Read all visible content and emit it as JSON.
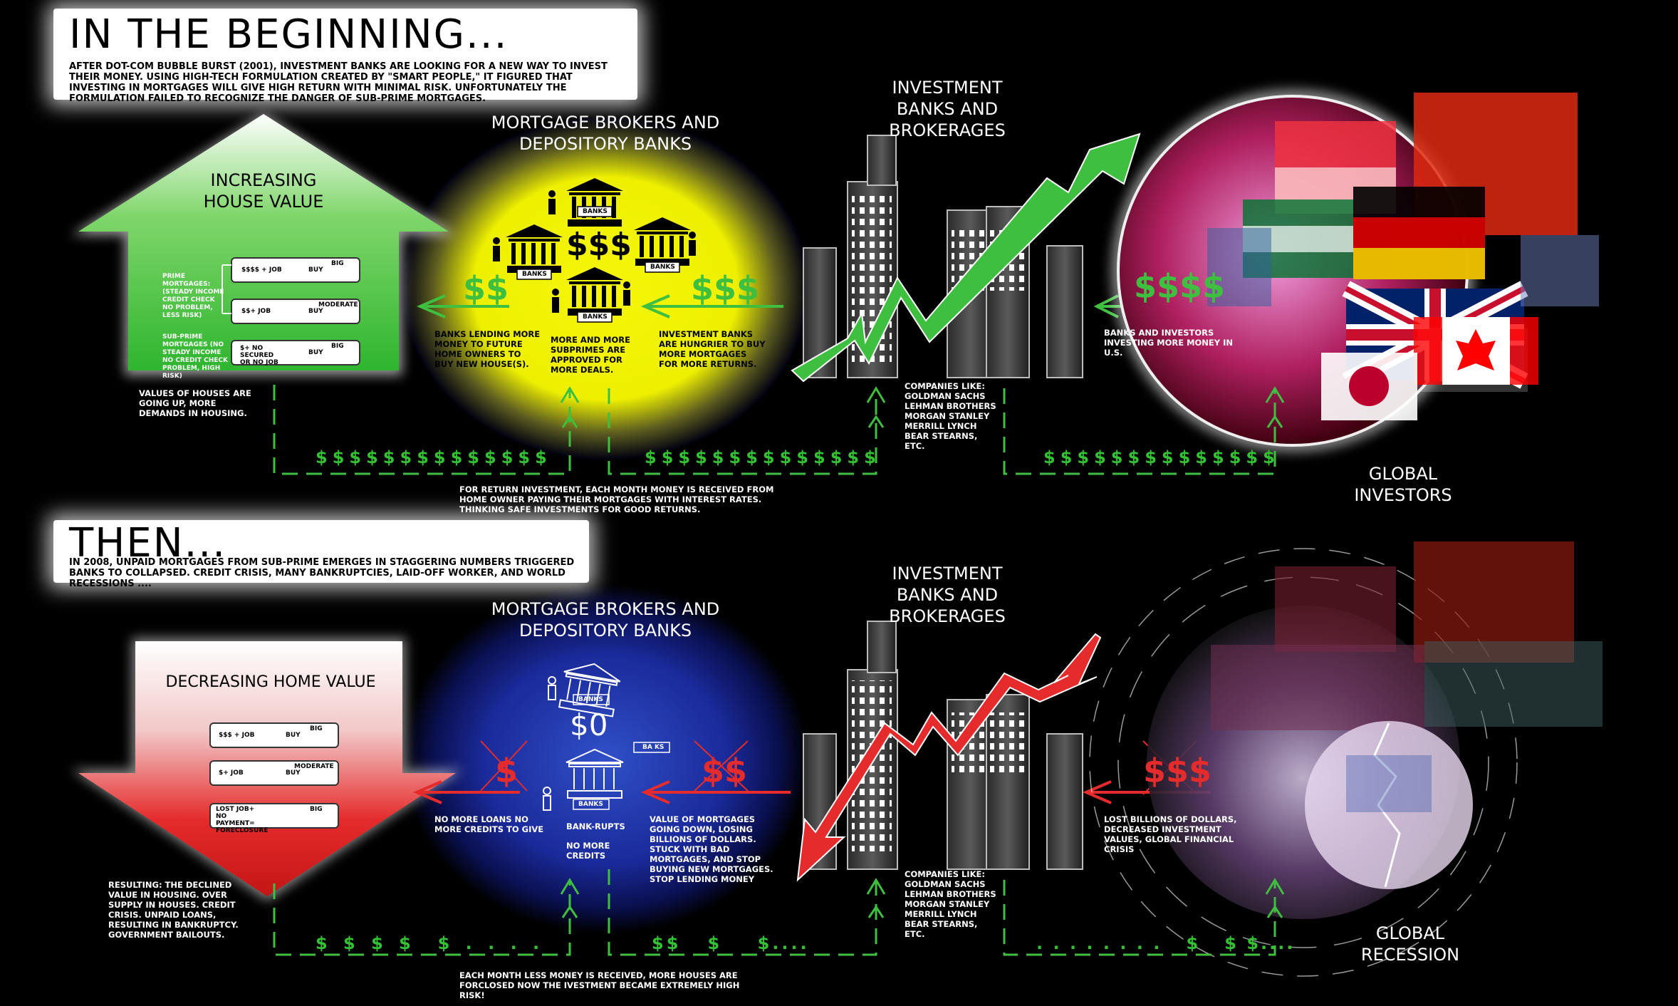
{
  "top": {
    "heading": "IN THE BEGINNING...",
    "intro": "AFTER DOT-COM BUBBLE BURST (2001), INVESTMENT BANKS ARE LOOKING FOR A NEW WAY TO INVEST THEIR MONEY. USING HIGH-TECH FORMULATION CREATED BY \"SMART PEOPLE,\" IT FIGURED THAT INVESTING IN MORTGAGES WILL GIVE HIGH RETURN WITH MINIMAL RISK. UNFORTUNATELY THE FORMULATION FAILED TO RECOGNIZE THE DANGER OF SUB-PRIME MORTGAGES.",
    "house_title": "INCREASING HOUSE VALUE",
    "prime_label": "PRIME MORTGAGES: (STEADY INCOME CREDIT CHECK NO PROBLEM, LESS RISK)",
    "subprime_label": "SUB-PRIME MORTGAGES (NO STEADY INCOME NO CREDIT CHECK PROBLEM, HIGH RISK)",
    "rows": [
      {
        "left": "$$$$ + JOB",
        "buy": "BUY",
        "house": "BIG"
      },
      {
        "left": "$$+ JOB",
        "buy": "BUY",
        "house": "MODERATE"
      },
      {
        "left": "$+ NO SECURED OR NO JOB",
        "buy": "BUY",
        "house": "BIG"
      }
    ],
    "house_note": "VALUES OF HOUSES ARE GOING UP, MORE DEMANDS IN HOUSING.",
    "brokers_title": "MORTGAGE BROKERS AND DEPOSITORY BANKS",
    "bank_label": "BANKS",
    "center_dollars": "$$$",
    "left_dollars": "$$",
    "right_dollars": "$$$",
    "far_dollars": "$$$$",
    "banks_lending": "BANKS LENDING MORE MONEY TO FUTURE HOME OWNERS TO BUY NEW HOUSE(S).",
    "more_subprimes": "MORE AND MORE SUBPRIMES ARE APPROVED FOR MORE DEALS.",
    "hungrier": "INVESTMENT BANKS ARE HUNGRIER TO BUY MORE MORTGAGES FOR MORE RETURNS.",
    "ib_title": "INVESTMENT BANKS AND BROKERAGES",
    "companies": "COMPANIES LIKE: GOLDMAN SACHS LEHMAN BROTHERS MORGAN STANLEY MERRILL LYNCH BEAR STEARNS, ETC.",
    "investors_note": "BANKS AND INVESTORS INVESTING MORE MONEY IN U.S.",
    "global_title": "GLOBAL INVESTORS",
    "flow_row": "$$$$$$$$$$$$$$",
    "return_note": "FOR RETURN INVESTMENT, EACH MONTH MONEY IS RECEIVED FROM HOME OWNER PAYING THEIR MORTGAGES WITH INTEREST RATES. THINKING SAFE INVESTMENTS FOR GOOD RETURNS."
  },
  "bottom": {
    "heading": "THEN...",
    "intro": "IN 2008, UNPAID MORTGAGES FROM SUB-PRIME EMERGES IN STAGGERING NUMBERS TRIGGERED BANKS TO COLLAPSED. CREDIT CRISIS, MANY BANKRUPTCIES, LAID-OFF WORKER, AND WORLD RECESSIONS ....",
    "house_title": "DECREASING HOME VALUE",
    "rows": [
      {
        "left": "$$$ + JOB",
        "buy": "BUY",
        "house": "BIG"
      },
      {
        "left": "$+ JOB",
        "buy": "BUY",
        "house": "MODERATE"
      },
      {
        "left": "LOST JOB+ NO PAYMENT= FORECLOSURE",
        "buy": "",
        "house": "BIG"
      }
    ],
    "resulting": "RESULTING: THE DECLINED VALUE IN HOUSING. OVER SUPPLY IN HOUSES. CREDIT CRISIS. UNPAID LOANS, RESULTING IN BANKRUPTCY. GOVERNMENT BAILOUTS.",
    "brokers_title": "MORTGAGE BROKERS AND DEPOSITORY BANKS",
    "bank_label": "BANKS",
    "bank_label_broken": "BA KS",
    "zero": "$0",
    "left_dollars": "$",
    "right_dollars": "$$",
    "far_dollars": "$$$",
    "no_more_loans": "NO MORE LOANS NO MORE CREDITS TO GIVE",
    "bankrupts": "BANK-RUPTS",
    "no_more_credits": "NO MORE CREDITS",
    "value_down": "VALUE OF MORTGAGES GOING DOWN, LOSING BILLIONS OF DOLLARS. STUCK WITH BAD MORTGAGES, AND STOP BUYING NEW MORTGAGES. STOP LENDING MONEY",
    "ib_title": "INVESTMENT BANKS AND BROKERAGES",
    "companies": "COMPANIES LIKE: GOLDMAN SACHS LEHMAN BROTHERS MORGAN STANLEY MERRILL LYNCH BEAR STEARNS, ETC.",
    "lost_billions": "LOST BILLIONS OF DOLLARS, DECREASED INVESTMENT VALUES, GLOBAL FINANCIAL CRISIS",
    "global_title": "GLOBAL RECESSION",
    "flow_left": "$ $ $ $  $ . . . .",
    "flow_mid": "$$   $    $....",
    "flow_right": ". . . . . . . .   $   $ $....",
    "less_money_note": "EACH MONTH LESS MONEY IS RECEIVED, MORE HOUSES ARE FORCLOSED NOW THE IVESTMENT BECAME EXTREMELY HIGH RISK!"
  },
  "colors": {
    "green": "#3fbf3f",
    "red": "#e52b2b",
    "yellow": "#f4f20a",
    "blue": "#1a2a9a"
  }
}
